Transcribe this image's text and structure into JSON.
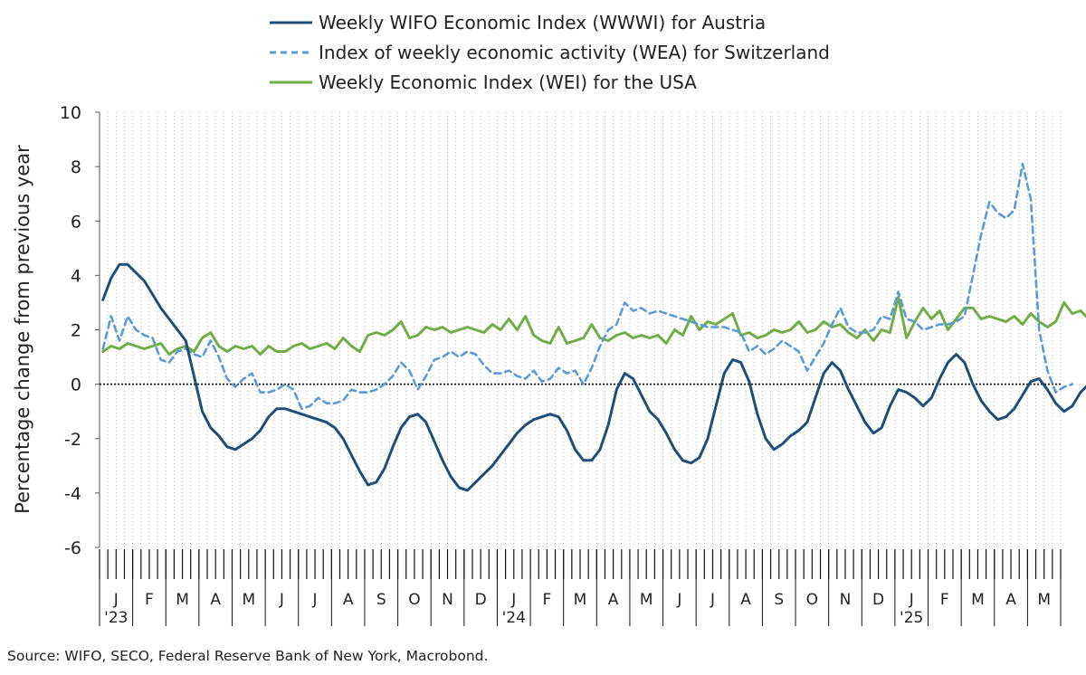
{
  "source": "Source: WIFO, SECO, Federal Reserve Bank of New York, Macrobond.",
  "chart_data": {
    "type": "line",
    "title": "",
    "xlabel": "",
    "ylabel": "Percentage change from previous year",
    "ylim": [
      -6,
      10
    ],
    "y_ticks": [
      "10",
      "8",
      "6",
      "4",
      "2",
      "0",
      "-2",
      "-4",
      "-6"
    ],
    "grid": "vertical dotted gridlines at weekly intervals",
    "legend_position": "top",
    "x_month_labels": [
      "J",
      "F",
      "M",
      "A",
      "M",
      "J",
      "J",
      "A",
      "S",
      "O",
      "N",
      "D",
      "J",
      "F",
      "M",
      "A",
      "M",
      "J",
      "J",
      "A",
      "S",
      "O",
      "N",
      "D",
      "J",
      "F",
      "M",
      "A",
      "M"
    ],
    "x_year_labels": [
      {
        "month_index": 0,
        "label": "'23"
      },
      {
        "month_index": 12,
        "label": "'24"
      },
      {
        "month_index": 24,
        "label": "'25"
      }
    ],
    "series": [
      {
        "name": "Weekly WIFO Economic Index (WWWI) for Austria",
        "color": "#1f4e79",
        "style": "solid",
        "x_start": 0,
        "x_step": 0.25,
        "values": [
          3.1,
          3.9,
          4.4,
          4.4,
          4.1,
          3.8,
          3.3,
          2.8,
          2.4,
          2.0,
          1.6,
          0.3,
          -1.0,
          -1.6,
          -1.9,
          -2.3,
          -2.4,
          -2.2,
          -2.0,
          -1.7,
          -1.2,
          -0.9,
          -0.9,
          -1.0,
          -1.1,
          -1.2,
          -1.3,
          -1.4,
          -1.6,
          -2.0,
          -2.6,
          -3.2,
          -3.7,
          -3.6,
          -3.1,
          -2.3,
          -1.6,
          -1.2,
          -1.1,
          -1.4,
          -2.1,
          -2.8,
          -3.4,
          -3.8,
          -3.9,
          -3.6,
          -3.3,
          -3.0,
          -2.6,
          -2.2,
          -1.8,
          -1.5,
          -1.3,
          -1.2,
          -1.1,
          -1.2,
          -1.7,
          -2.4,
          -2.8,
          -2.8,
          -2.4,
          -1.5,
          -0.2,
          0.4,
          0.2,
          -0.4,
          -1.0,
          -1.3,
          -1.8,
          -2.4,
          -2.8,
          -2.9,
          -2.7,
          -2.0,
          -0.8,
          0.4,
          0.9,
          0.8,
          0.1,
          -1.1,
          -2.0,
          -2.4,
          -2.2,
          -1.9,
          -1.7,
          -1.4,
          -0.5,
          0.4,
          0.8,
          0.5,
          -0.2,
          -0.8,
          -1.4,
          -1.8,
          -1.6,
          -0.8,
          -0.2,
          -0.3,
          -0.5,
          -0.8,
          -0.5,
          0.2,
          0.8,
          1.1,
          0.8,
          0.0,
          -0.6,
          -1.0,
          -1.3,
          -1.2,
          -0.9,
          -0.4,
          0.1,
          0.2,
          -0.2,
          -0.7,
          -1.0,
          -0.8,
          -0.3,
          0.0
        ]
      },
      {
        "name": "Index of weekly economic activity (WEA) for Switzerland",
        "color": "#5b9bd5",
        "style": "dashed",
        "x_start": 0,
        "x_step": 0.25,
        "values": [
          1.3,
          2.5,
          1.6,
          2.5,
          2.0,
          1.8,
          1.7,
          0.9,
          0.8,
          1.2,
          1.3,
          1.1,
          1.0,
          1.6,
          1.0,
          0.2,
          -0.1,
          0.2,
          0.4,
          -0.3,
          -0.3,
          -0.2,
          0.0,
          -0.2,
          -0.9,
          -0.8,
          -0.5,
          -0.7,
          -0.7,
          -0.6,
          -0.2,
          -0.3,
          -0.3,
          -0.2,
          0.0,
          0.3,
          0.8,
          0.5,
          -0.2,
          0.3,
          0.9,
          1.0,
          1.2,
          1.0,
          1.2,
          1.1,
          0.7,
          0.4,
          0.4,
          0.5,
          0.3,
          0.2,
          0.5,
          0.1,
          0.2,
          0.6,
          0.4,
          0.5,
          0.0,
          0.6,
          1.4,
          2.0,
          2.2,
          3.0,
          2.7,
          2.8,
          2.6,
          2.7,
          2.6,
          2.5,
          2.4,
          2.3,
          2.2,
          2.1,
          2.1,
          2.1,
          2.0,
          1.9,
          1.2,
          1.4,
          1.1,
          1.3,
          1.6,
          1.4,
          1.2,
          0.5,
          1.0,
          1.5,
          2.2,
          2.8,
          2.1,
          1.9,
          1.9,
          2.0,
          2.5,
          2.4,
          3.4,
          2.4,
          2.3,
          2.0,
          2.1,
          2.2,
          2.2,
          2.3,
          2.5,
          4.0,
          5.5,
          6.7,
          6.3,
          6.1,
          6.4,
          8.1,
          6.8,
          2.0,
          0.5,
          -0.3,
          -0.1,
          0.0
        ]
      },
      {
        "name": "Weekly Economic Index (WEI) for the USA",
        "color": "#70ad47",
        "style": "solid",
        "x_start": 0,
        "x_step": 0.25,
        "values": [
          1.2,
          1.4,
          1.3,
          1.5,
          1.4,
          1.3,
          1.4,
          1.5,
          1.1,
          1.3,
          1.4,
          1.2,
          1.7,
          1.9,
          1.4,
          1.2,
          1.4,
          1.3,
          1.4,
          1.1,
          1.4,
          1.2,
          1.2,
          1.4,
          1.5,
          1.3,
          1.4,
          1.5,
          1.3,
          1.7,
          1.4,
          1.2,
          1.8,
          1.9,
          1.8,
          2.0,
          2.3,
          1.7,
          1.8,
          2.1,
          2.0,
          2.1,
          1.9,
          2.0,
          2.1,
          2.0,
          1.9,
          2.2,
          2.0,
          2.4,
          2.0,
          2.5,
          1.8,
          1.6,
          1.5,
          2.1,
          1.5,
          1.6,
          1.7,
          2.2,
          1.7,
          1.6,
          1.8,
          1.9,
          1.7,
          1.8,
          1.7,
          1.8,
          1.5,
          2.0,
          1.8,
          2.5,
          2.0,
          2.3,
          2.2,
          2.4,
          2.6,
          1.8,
          1.9,
          1.7,
          1.8,
          2.0,
          1.9,
          2.0,
          2.3,
          1.9,
          2.0,
          2.3,
          2.1,
          2.2,
          1.9,
          1.7,
          2.0,
          1.6,
          2.0,
          1.9,
          3.2,
          1.7,
          2.3,
          2.8,
          2.4,
          2.7,
          2.0,
          2.4,
          2.8,
          2.8,
          2.4,
          2.5,
          2.4,
          2.3,
          2.5,
          2.2,
          2.6,
          2.3,
          2.1,
          2.3,
          3.0,
          2.6,
          2.7,
          2.4,
          2.5,
          2.1
        ]
      }
    ]
  }
}
